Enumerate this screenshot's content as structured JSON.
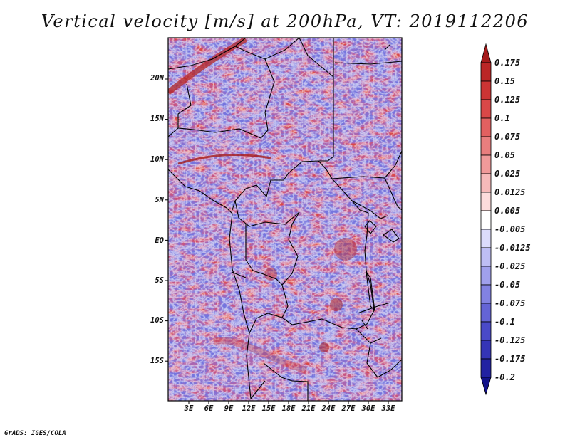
{
  "title": "Vertical velocity [m/s] at 200hPa, VT: 2019112206",
  "credit": "GrADS: IGES/COLA",
  "map": {
    "lat_labels": [
      "20N",
      "15N",
      "10N",
      "5N",
      "EQ",
      "5S",
      "10S",
      "15S"
    ],
    "lon_labels": [
      "3E",
      "6E",
      "9E",
      "12E",
      "15E",
      "18E",
      "21E",
      "24E",
      "27E",
      "30E",
      "33E"
    ]
  },
  "colorbar": {
    "labels": [
      "0.175",
      "0.15",
      "0.125",
      "0.1",
      "0.075",
      "0.05",
      "0.025",
      "0.0125",
      "0.005",
      "-0.005",
      "-0.0125",
      "-0.025",
      "-0.05",
      "-0.075",
      "-0.1",
      "-0.125",
      "-0.175",
      "-0.2"
    ],
    "colors": [
      "#a51a1a",
      "#bb2626",
      "#cc3434",
      "#d94848",
      "#e26060",
      "#e97e7e",
      "#f09a9a",
      "#f6baba",
      "#fcdcdc",
      "#ffffff",
      "#dcdcfb",
      "#bebef4",
      "#a0a0ec",
      "#8282e2",
      "#6464d6",
      "#4a4ac8",
      "#3434b6",
      "#2222a2",
      "#12128a"
    ]
  }
}
